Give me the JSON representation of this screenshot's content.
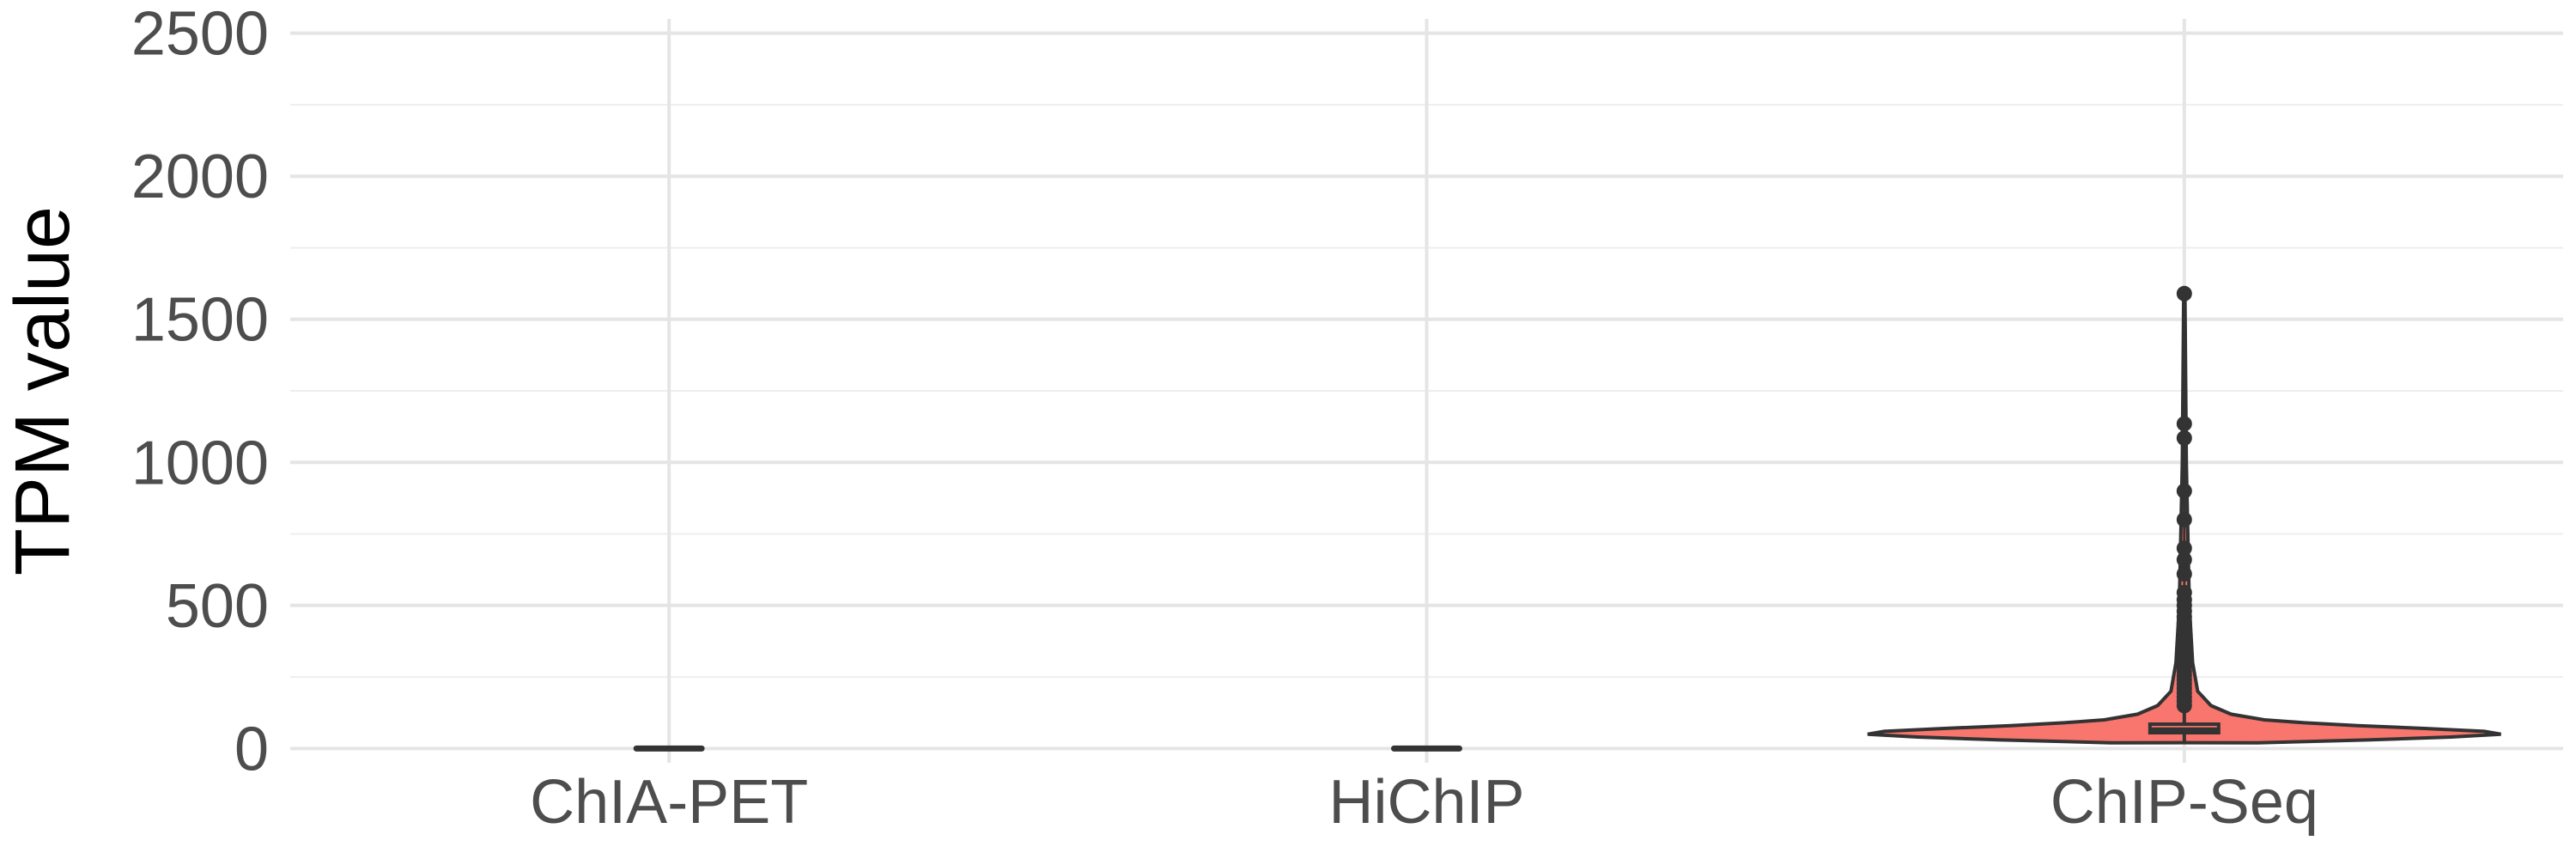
{
  "chart_data": {
    "type": "violin",
    "title": "",
    "xlabel": "",
    "ylabel": "TPM value",
    "ylim": [
      -50,
      2550
    ],
    "yticks": [
      0,
      500,
      1000,
      1500,
      2000,
      2500
    ],
    "grid": true,
    "legend": "none",
    "fill_color": "#F8766D",
    "outline_color": "#333333",
    "categories": [
      "ChIA-PET",
      "HiChIP",
      "ChIP-Seq"
    ],
    "series": [
      {
        "category": "ChIA-PET",
        "min": 0,
        "q1": 0,
        "median": 0,
        "q3": 0,
        "max": 0,
        "outliers": []
      },
      {
        "category": "HiChIP",
        "min": 0,
        "q1": 0,
        "median": 0,
        "q3": 0,
        "max": 0,
        "outliers": []
      },
      {
        "category": "ChIP-Seq",
        "min": 20,
        "q1": 55,
        "median": 65,
        "q3": 85,
        "max": 140,
        "density_profile": [
          {
            "y": 20,
            "w": 0.22
          },
          {
            "y": 30,
            "w": 0.55
          },
          {
            "y": 40,
            "w": 0.8
          },
          {
            "y": 50,
            "w": 0.95
          },
          {
            "y": 60,
            "w": 0.9
          },
          {
            "y": 70,
            "w": 0.72
          },
          {
            "y": 80,
            "w": 0.52
          },
          {
            "y": 90,
            "w": 0.36
          },
          {
            "y": 100,
            "w": 0.24
          },
          {
            "y": 120,
            "w": 0.14
          },
          {
            "y": 150,
            "w": 0.08
          },
          {
            "y": 200,
            "w": 0.04
          },
          {
            "y": 300,
            "w": 0.025
          },
          {
            "y": 500,
            "w": 0.015
          },
          {
            "y": 1000,
            "w": 0.006
          },
          {
            "y": 1590,
            "w": 0.002
          }
        ],
        "outliers": [
          150,
          165,
          180,
          195,
          210,
          225,
          240,
          255,
          270,
          285,
          300,
          315,
          330,
          345,
          360,
          375,
          390,
          405,
          420,
          440,
          460,
          480,
          500,
          520,
          545,
          610,
          660,
          700,
          800,
          900,
          1085,
          1135,
          1590
        ]
      }
    ]
  }
}
